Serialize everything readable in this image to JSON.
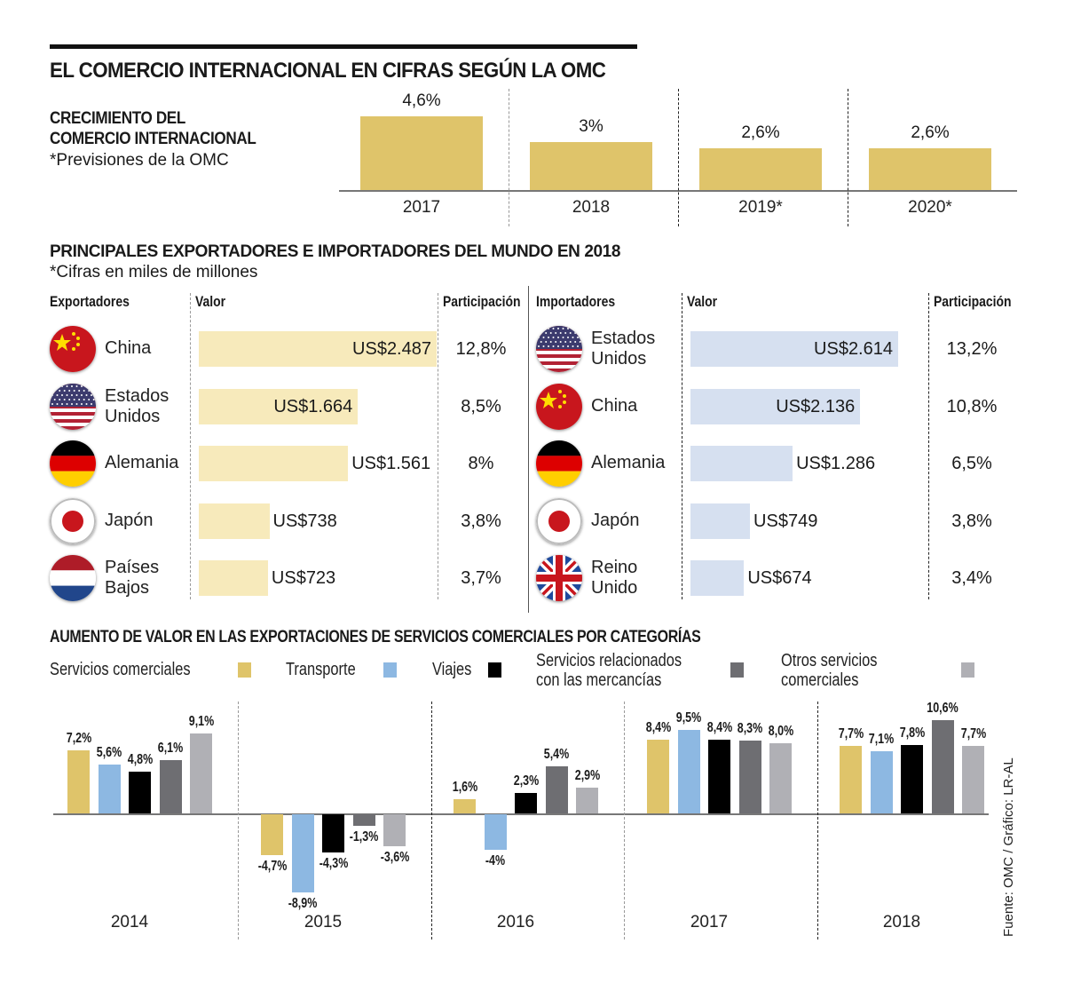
{
  "title": "EL COMERCIO INTERNACIONAL EN CIFRAS SEGÚN LA OMC",
  "growth": {
    "heading_line1": "CRECIMIENTO DEL",
    "heading_line2": "COMERCIO INTERNACIONAL",
    "note": "*Previsiones de la OMC"
  },
  "traders": {
    "heading": "PRINCIPALES EXPORTADORES E IMPORTADORES DEL MUNDO EN 2018",
    "note": "*Cifras en miles de millones",
    "exporters": {
      "col_country": "Exportadores",
      "col_value": "Valor",
      "col_share": "Participación",
      "rows": [
        {
          "flag": "china-flag",
          "country_l1": "China",
          "country_l2": "",
          "value": 2487,
          "value_label": "US$2.487",
          "share": "12,8%"
        },
        {
          "flag": "usa-flag",
          "country_l1": "Estados",
          "country_l2": "Unidos",
          "value": 1664,
          "value_label": "US$1.664",
          "share": "8,5%"
        },
        {
          "flag": "germany-flag",
          "country_l1": "Alemania",
          "country_l2": "",
          "value": 1561,
          "value_label": "US$1.561",
          "share": "8%"
        },
        {
          "flag": "japan-flag",
          "country_l1": "Japón",
          "country_l2": "",
          "value": 738,
          "value_label": "US$738",
          "share": "3,8%"
        },
        {
          "flag": "netherlands-flag",
          "country_l1": "Países",
          "country_l2": "Bajos",
          "value": 723,
          "value_label": "US$723",
          "share": "3,7%"
        }
      ]
    },
    "importers": {
      "col_country": "Importadores",
      "col_value": "Valor",
      "col_share": "Participación",
      "rows": [
        {
          "flag": "usa-flag",
          "country_l1": "Estados",
          "country_l2": "Unidos",
          "value": 2614,
          "value_label": "US$2.614",
          "share": "13,2%"
        },
        {
          "flag": "china-flag",
          "country_l1": "China",
          "country_l2": "",
          "value": 2136,
          "value_label": "US$2.136",
          "share": "10,8%"
        },
        {
          "flag": "germany-flag",
          "country_l1": "Alemania",
          "country_l2": "",
          "value": 1286,
          "value_label": "US$1.286",
          "share": "6,5%"
        },
        {
          "flag": "japan-flag",
          "country_l1": "Japón",
          "country_l2": "",
          "value": 749,
          "value_label": "US$749",
          "share": "3,8%"
        },
        {
          "flag": "uk-flag",
          "country_l1": "Reino",
          "country_l2": "Unido",
          "value": 674,
          "value_label": "US$674",
          "share": "3,4%"
        }
      ]
    }
  },
  "services": {
    "heading": "AUMENTO DE VALOR EN LAS EXPORTACIONES DE SERVICIOS COMERCIALES POR CATEGORÍAS",
    "legend": [
      {
        "l1": "Servicios comerciales",
        "l2": "",
        "color": "#dfc46a"
      },
      {
        "l1": "Transporte",
        "l2": "",
        "color": "#8db8e2"
      },
      {
        "l1": "Viajes",
        "l2": "",
        "color": "#000000"
      },
      {
        "l1": "Servicios relacionados",
        "l2": "con las mercancías",
        "color": "#6e6e72"
      },
      {
        "l1": "Otros servicios",
        "l2": "comerciales",
        "color": "#b0b0b5"
      }
    ]
  },
  "source": "Fuente: OMC / Gráfico: LR-AL",
  "colors": {
    "growth_bar": "#dfc46a",
    "export_bar": "#f7eabb",
    "import_bar": "#d6e0f0"
  },
  "chart_data": [
    {
      "type": "bar",
      "title": "CRECIMIENTO DEL COMERCIO INTERNACIONAL",
      "subtitle": "*Previsiones de la OMC",
      "categories": [
        "2017",
        "2018",
        "2019*",
        "2020*"
      ],
      "values": [
        4.6,
        3.0,
        2.6,
        2.6
      ],
      "labels": [
        "4,6%",
        "3%",
        "2,6%",
        "2,6%"
      ],
      "ylim": [
        0,
        5
      ],
      "xlabel": "",
      "ylabel": ""
    },
    {
      "type": "bar",
      "orientation": "horizontal",
      "title": "Exportadores 2018 (miles de millones US$)",
      "categories": [
        "China",
        "Estados Unidos",
        "Alemania",
        "Japón",
        "Países Bajos"
      ],
      "values": [
        2487,
        1664,
        1561,
        738,
        723
      ],
      "share_pct": [
        12.8,
        8.5,
        8.0,
        3.8,
        3.7
      ]
    },
    {
      "type": "bar",
      "orientation": "horizontal",
      "title": "Importadores 2018 (miles de millones US$)",
      "categories": [
        "Estados Unidos",
        "China",
        "Alemania",
        "Japón",
        "Reino Unido"
      ],
      "values": [
        2614,
        2136,
        1286,
        749,
        674
      ],
      "share_pct": [
        13.2,
        10.8,
        6.5,
        3.8,
        3.4
      ]
    },
    {
      "type": "bar",
      "title": "AUMENTO DE VALOR EN LAS EXPORTACIONES DE SERVICIOS COMERCIALES POR CATEGORÍAS",
      "categories": [
        "2014",
        "2015",
        "2016",
        "2017",
        "2018"
      ],
      "series": [
        {
          "name": "Servicios comerciales",
          "values": [
            7.2,
            -4.7,
            1.6,
            8.4,
            7.7
          ],
          "labels": [
            "7,2%",
            "-4,7%",
            "1,6%",
            "8,4%",
            "7,7%"
          ]
        },
        {
          "name": "Transporte",
          "values": [
            5.6,
            -8.9,
            -4.0,
            9.5,
            7.1
          ],
          "labels": [
            "5,6%",
            "-8,9%",
            "-4%",
            "9,5%",
            "7,1%"
          ]
        },
        {
          "name": "Viajes",
          "values": [
            4.8,
            -4.3,
            2.3,
            8.4,
            7.8
          ],
          "labels": [
            "4,8%",
            "-4,3%",
            "2,3%",
            "8,4%",
            "7,8%"
          ]
        },
        {
          "name": "Servicios relacionados con las mercancías",
          "values": [
            6.1,
            -1.3,
            5.4,
            8.3,
            10.6
          ],
          "labels": [
            "6,1%",
            "-1,3%",
            "5,4%",
            "8,3%",
            "10,6%"
          ]
        },
        {
          "name": "Otros servicios comerciales",
          "values": [
            9.1,
            -3.6,
            2.9,
            8.0,
            7.7
          ],
          "labels": [
            "9,1%",
            "-3,6%",
            "2,9%",
            "8,0%",
            "7,7%"
          ]
        }
      ],
      "ylim": [
        -10,
        11
      ],
      "legend": "top"
    }
  ]
}
